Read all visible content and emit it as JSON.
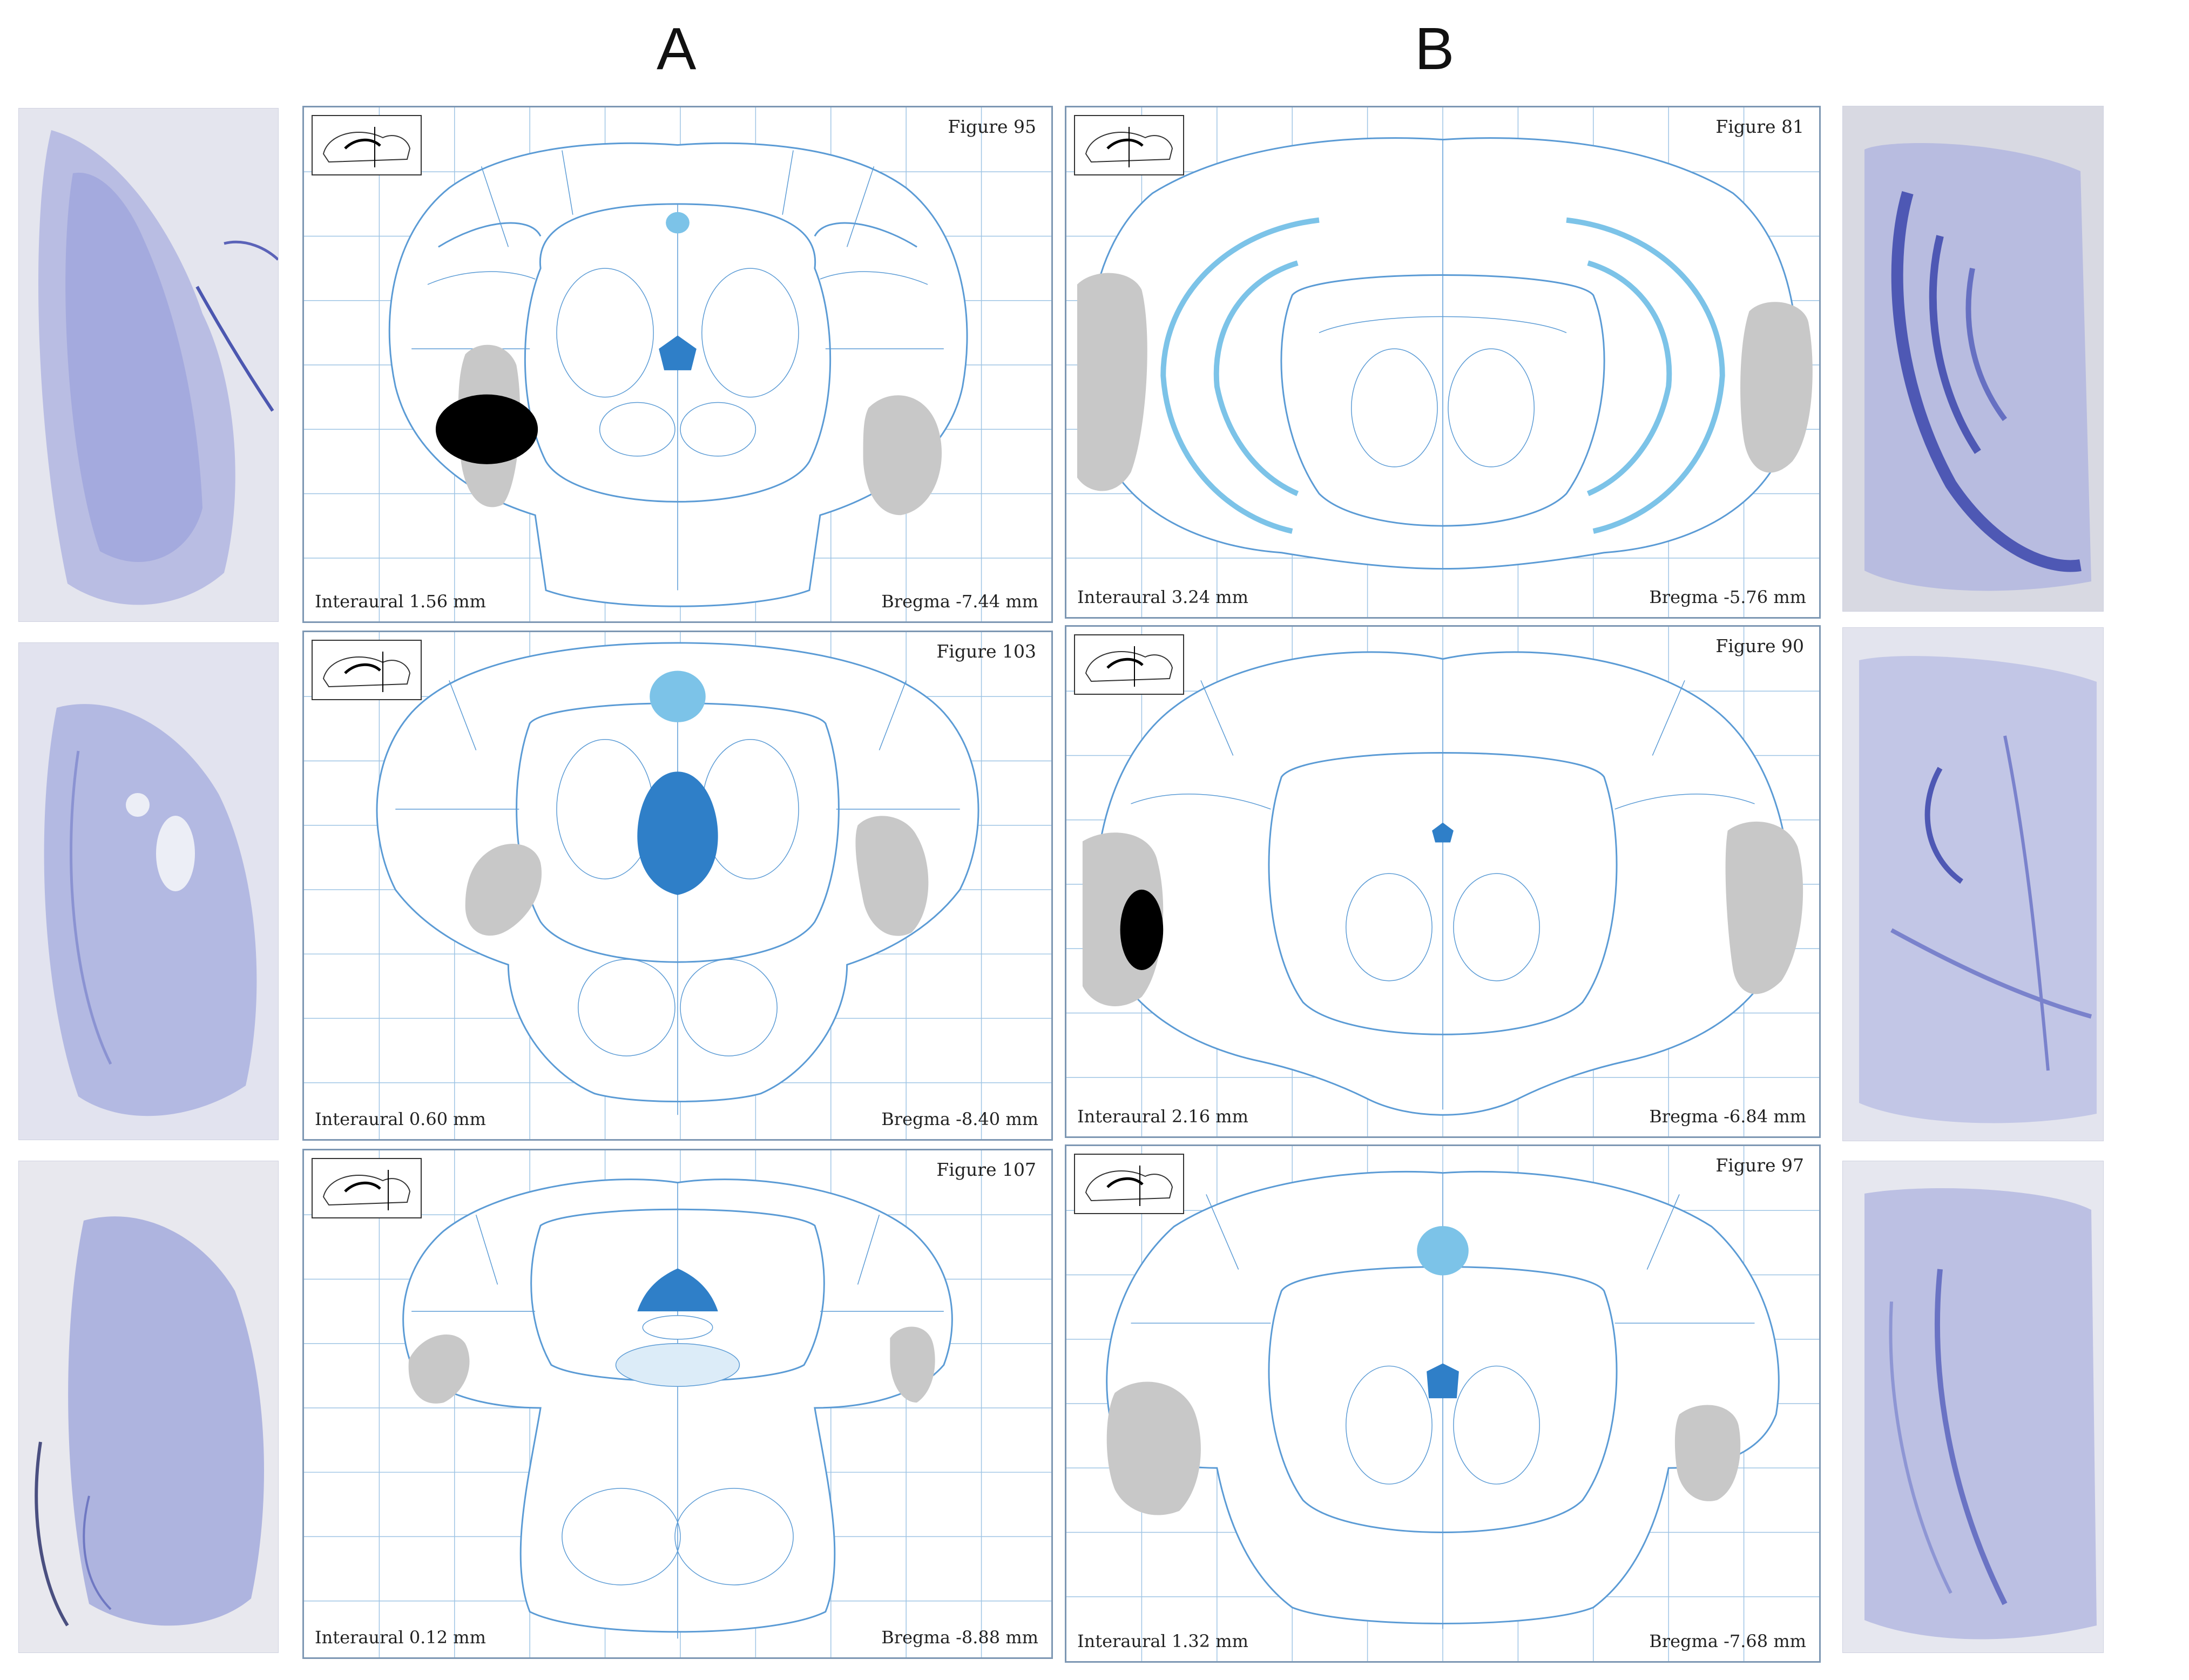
{
  "columns": {
    "a": "A",
    "b": "B"
  },
  "plates": [
    {
      "figure": "Figure 95",
      "interaural": "Interaural 1.56 mm",
      "bregma": "Bregma -7.44 mm"
    },
    {
      "figure": "Figure 103",
      "interaural": "Interaural 0.60 mm",
      "bregma": "Bregma -8.40 mm"
    },
    {
      "figure": "Figure 107",
      "interaural": "Interaural 0.12 mm",
      "bregma": "Bregma -8.88 mm"
    },
    {
      "figure": "Figure 81",
      "interaural": "Interaural 3.24 mm",
      "bregma": "Bregma -5.76 mm"
    },
    {
      "figure": "Figure 90",
      "interaural": "Interaural 2.16 mm",
      "bregma": "Bregma -6.84 mm"
    },
    {
      "figure": "Figure 97",
      "interaural": "Interaural 1.32 mm",
      "bregma": "Bregma -7.68 mm"
    }
  ],
  "colors": {
    "atlas_line": "#5b9bd5",
    "highlight_dark": "#2f7fc8",
    "highlight_light": "#7cc3e8",
    "lesion_gray": "#c8c8c8",
    "lesion_black": "#000000",
    "nissl_stain": "#5b63b8"
  }
}
